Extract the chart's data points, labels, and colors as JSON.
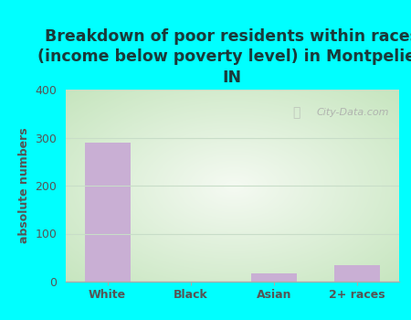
{
  "title": "Breakdown of poor residents within races\n(income below poverty level) in Montpelier,\nIN",
  "categories": [
    "White",
    "Black",
    "Asian",
    "2+ races"
  ],
  "values": [
    289,
    0,
    18,
    35
  ],
  "bar_color": "#c9afd4",
  "ylabel": "absolute numbers",
  "ylim": [
    0,
    400
  ],
  "yticks": [
    0,
    100,
    200,
    300,
    400
  ],
  "background_color": "#00ffff",
  "plot_bg_top": "#d6ecd4",
  "plot_bg_bottom": "#eef7ec",
  "title_fontsize": 12.5,
  "axis_label_fontsize": 9,
  "tick_fontsize": 9,
  "watermark": "City-Data.com",
  "title_color": "#1a3a3a",
  "tick_color": "#555555",
  "grid_color": "#c8ddc8",
  "bar_width": 0.55
}
